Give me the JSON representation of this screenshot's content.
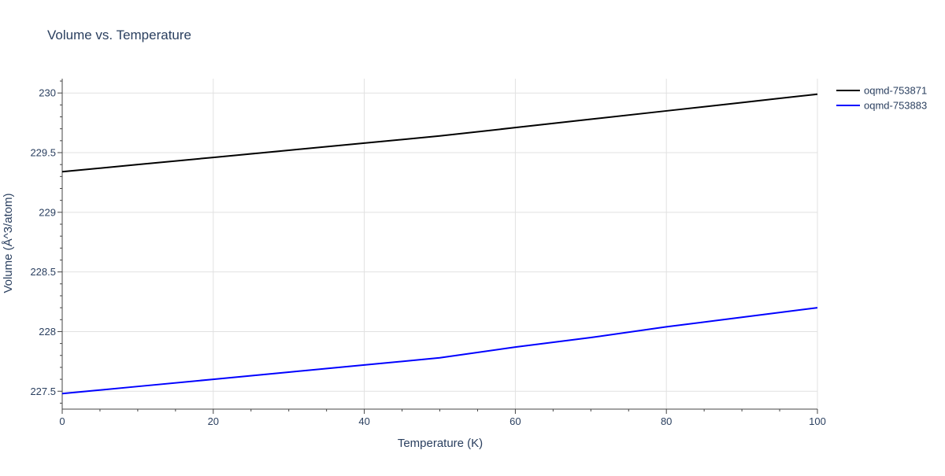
{
  "chart_data": {
    "type": "line",
    "title": "Volume vs. Temperature",
    "xlabel": "Temperature (K)",
    "ylabel": "Volume (Å^3/atom)",
    "xlim": [
      0,
      100
    ],
    "ylim": [
      227.35,
      230.12
    ],
    "x_ticks": [
      0,
      20,
      40,
      60,
      80,
      100
    ],
    "y_ticks": [
      227.5,
      228,
      228.5,
      229,
      229.5,
      230
    ],
    "x_tick_labels": [
      "0",
      "20",
      "40",
      "60",
      "80",
      "100"
    ],
    "y_tick_labels": [
      "227.5",
      "228",
      "228.5",
      "229",
      "229.5",
      "230"
    ],
    "grid": true,
    "legend_position": "top-right",
    "series": [
      {
        "name": "oqmd-753871",
        "color": "#000000",
        "x": [
          0,
          10,
          20,
          30,
          40,
          50,
          60,
          70,
          80,
          90,
          100
        ],
        "values": [
          229.34,
          229.4,
          229.46,
          229.52,
          229.58,
          229.64,
          229.71,
          229.78,
          229.85,
          229.92,
          229.99
        ]
      },
      {
        "name": "oqmd-753883",
        "color": "#0000ff",
        "x": [
          0,
          10,
          20,
          30,
          40,
          50,
          60,
          70,
          80,
          90,
          100
        ],
        "values": [
          227.48,
          227.54,
          227.6,
          227.66,
          227.72,
          227.78,
          227.87,
          227.95,
          228.04,
          228.12,
          228.2
        ]
      }
    ]
  }
}
